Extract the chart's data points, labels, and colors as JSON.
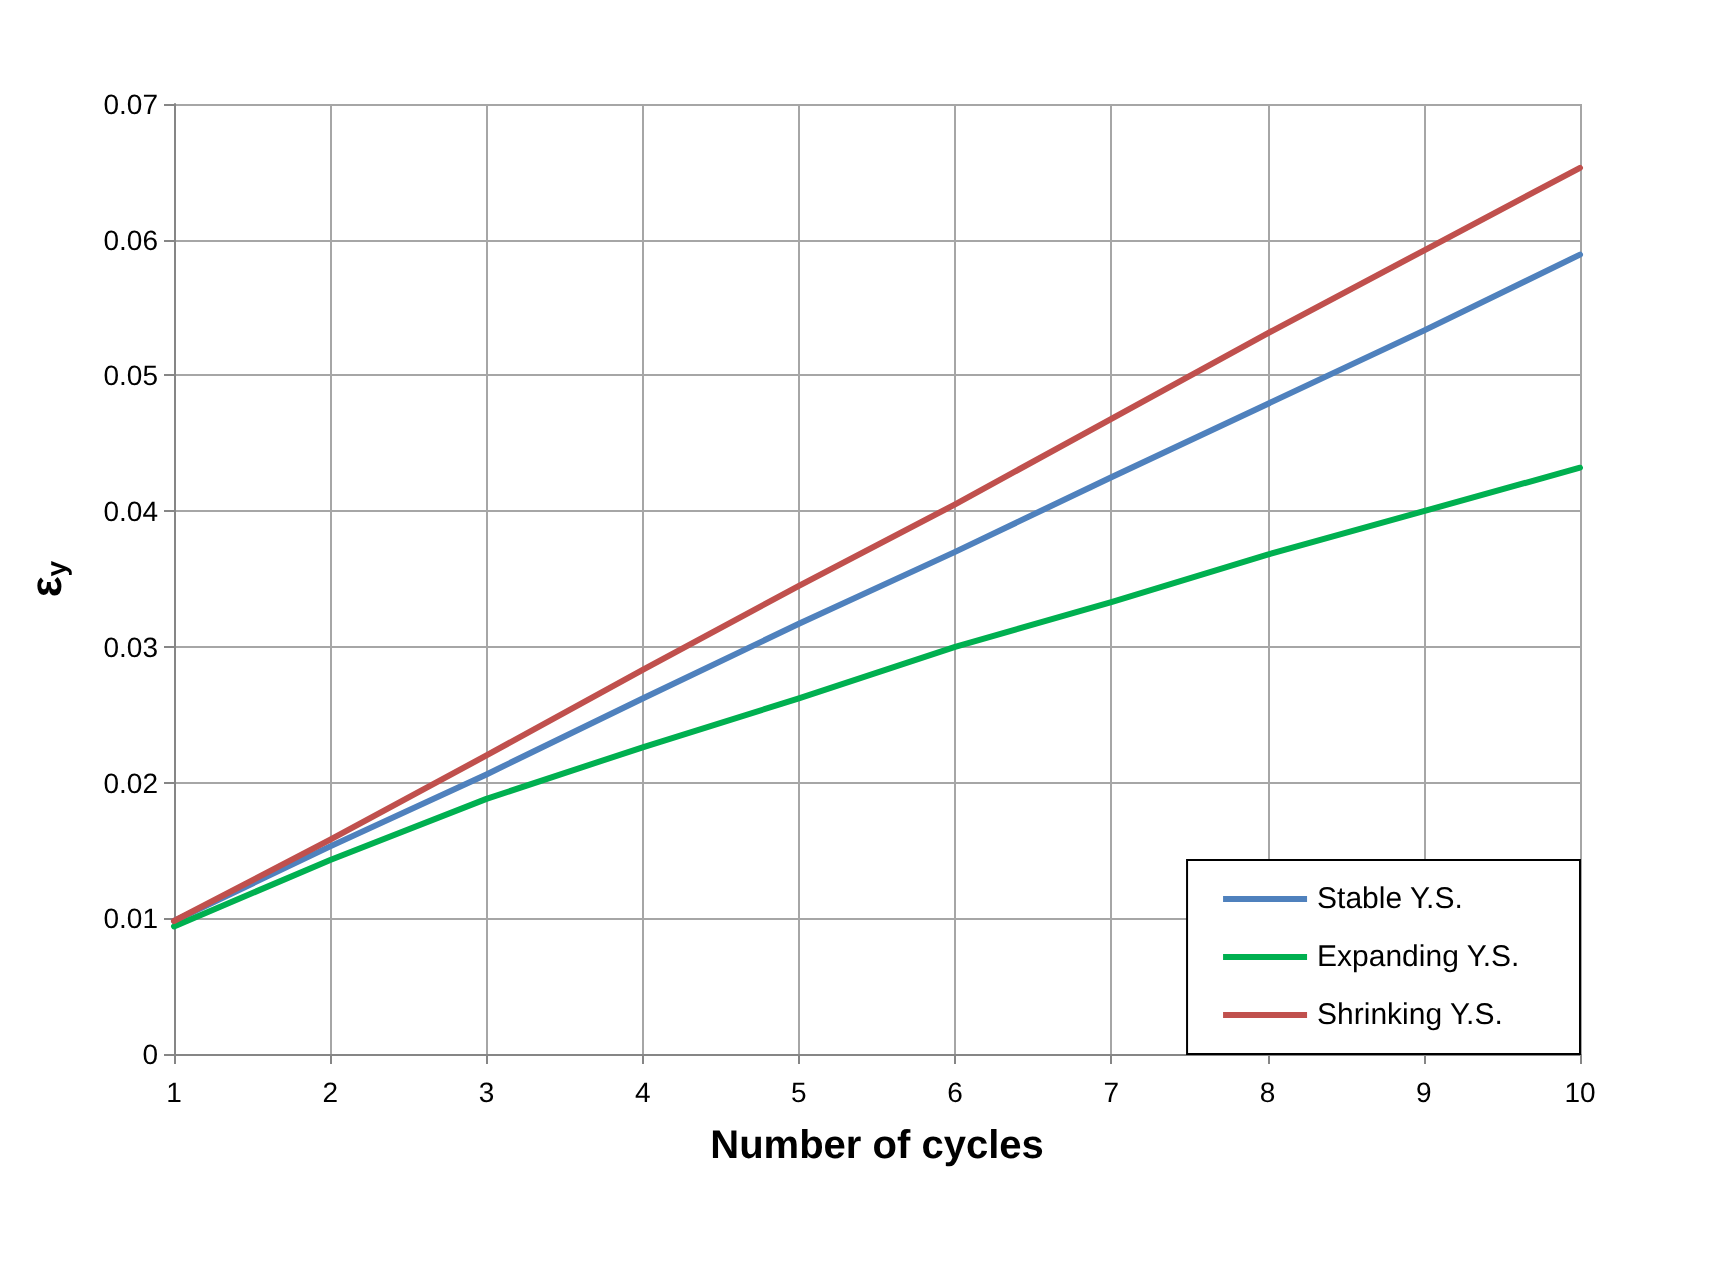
{
  "chart_data": {
    "type": "line",
    "xlabel": "Number of cycles",
    "ylabel": "ε$_{y}$",
    "x": [
      1,
      2,
      3,
      4,
      5,
      6,
      7,
      8,
      9,
      10
    ],
    "series": [
      {
        "name": "Stable Y.S.",
        "color": "#4f81bd",
        "values": [
          0.0098,
          0.0153,
          0.0206,
          0.0262,
          0.0317,
          0.037,
          0.0425,
          0.0479,
          0.0533,
          0.0589
        ]
      },
      {
        "name": "Expanding Y.S.",
        "color": "#00b050",
        "values": [
          0.0094,
          0.0143,
          0.0188,
          0.0226,
          0.0262,
          0.03,
          0.0333,
          0.0368,
          0.04,
          0.0432
        ]
      },
      {
        "name": "Shrinking Y.S.",
        "color": "#c0504d",
        "values": [
          0.0098,
          0.0158,
          0.022,
          0.0283,
          0.0345,
          0.0405,
          0.0468,
          0.0531,
          0.0592,
          0.0653
        ]
      }
    ],
    "xlim": [
      1,
      10
    ],
    "xticks": [
      1,
      2,
      3,
      4,
      5,
      6,
      7,
      8,
      9,
      10
    ],
    "ylim": [
      0,
      0.07
    ],
    "yticks": [
      0,
      0.01,
      0.02,
      0.03,
      0.04,
      0.05,
      0.06,
      0.07
    ],
    "grid": true,
    "legend": "bottom right",
    "marker": "none",
    "line_style": "solid"
  }
}
